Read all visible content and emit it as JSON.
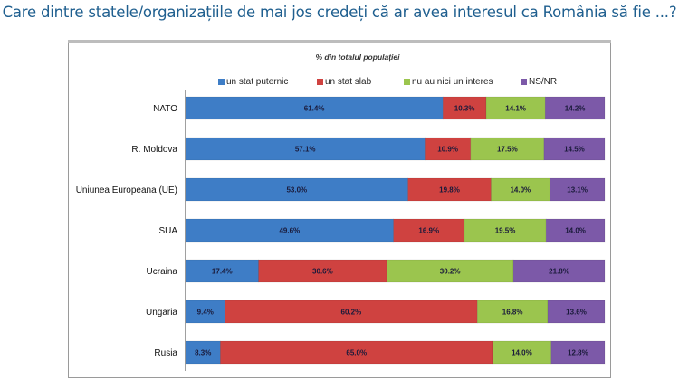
{
  "chart_data": {
    "type": "bar",
    "orientation": "horizontal",
    "stacked": true,
    "title": "Care dintre statele/organizațiile de mai jos credeți că ar avea interesul ca România să fie ...?",
    "subtitle": "% din totalul populației",
    "xlabel": "",
    "ylabel": "",
    "xlim": [
      0,
      100
    ],
    "grid": false,
    "legend_position": "top",
    "categories": [
      "NATO",
      "R. Moldova",
      "Uniunea Europeana (UE)",
      "SUA",
      "Ucraina",
      "Ungaria",
      "Rusia"
    ],
    "series": [
      {
        "name": "un stat puternic",
        "color": "#3e7dc6",
        "values": [
          61.4,
          57.1,
          53.0,
          49.6,
          17.4,
          9.4,
          8.3
        ],
        "labels": [
          "61.4%",
          "57.1%",
          "53.0%",
          "49.6%",
          "17.4%",
          "9.4%",
          "8.3%"
        ]
      },
      {
        "name": "un stat slab",
        "color": "#cf4240",
        "values": [
          10.3,
          10.9,
          19.8,
          16.9,
          30.6,
          60.2,
          65.0
        ],
        "labels": [
          "10.3%",
          "10.9%",
          "19.8%",
          "16.9%",
          "30.6%",
          "60.2%",
          "65.0%"
        ]
      },
      {
        "name": "nu au nici un interes",
        "color": "#9bc54e",
        "values": [
          14.1,
          17.5,
          14.0,
          19.5,
          30.2,
          16.8,
          14.0
        ],
        "labels": [
          "14.1%",
          "17.5%",
          "14.0%",
          "19.5%",
          "30.2%",
          "16.8%",
          "14.0%"
        ]
      },
      {
        "name": "NS/NR",
        "color": "#7c59a8",
        "values": [
          14.2,
          14.5,
          13.1,
          14.0,
          21.8,
          13.6,
          12.8
        ],
        "labels": [
          "14.2%",
          "14.5%",
          "13.1%",
          "14.0%",
          "21.8%",
          "13.6%",
          "12.8%"
        ]
      }
    ]
  }
}
